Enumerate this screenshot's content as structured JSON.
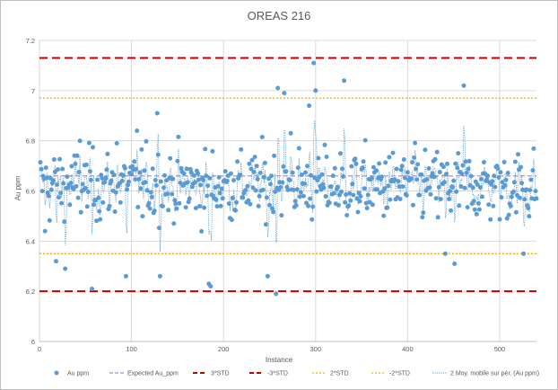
{
  "chart_data": {
    "type": "scatter",
    "title": "OREAS 216",
    "xlabel": "Instance",
    "ylabel": "Au ppm",
    "xlim": [
      0,
      540
    ],
    "ylim": [
      6.0,
      7.2
    ],
    "x_ticks": [
      "0",
      "100",
      "200",
      "300",
      "400",
      "500"
    ],
    "y_ticks": [
      "6",
      "6.2",
      "6.4",
      "6.6",
      "6.8",
      "7",
      "7.2"
    ],
    "colors": {
      "points": "#5b9bd5",
      "expected": "#a98cd9",
      "std3": "#c00000",
      "std2": "#f0b400",
      "moving_avg": "#5b9bd5"
    },
    "reference_lines": {
      "expected": 6.66,
      "plus_3std": 7.13,
      "minus_3std": 6.2,
      "plus_2std": 6.97,
      "minus_2std": 6.35
    },
    "series_count": 540,
    "noise_sd": 0.1,
    "outliers": [
      {
        "x": 5,
        "y": 6.44
      },
      {
        "x": 17,
        "y": 6.32
      },
      {
        "x": 27,
        "y": 6.29
      },
      {
        "x": 43,
        "y": 6.8
      },
      {
        "x": 56,
        "y": 6.21
      },
      {
        "x": 83,
        "y": 6.79
      },
      {
        "x": 93,
        "y": 6.26
      },
      {
        "x": 105,
        "y": 6.84
      },
      {
        "x": 127,
        "y": 6.91
      },
      {
        "x": 130,
        "y": 6.26
      },
      {
        "x": 183,
        "y": 6.23
      },
      {
        "x": 185,
        "y": 6.22
      },
      {
        "x": 247,
        "y": 6.26
      },
      {
        "x": 256,
        "y": 6.19
      },
      {
        "x": 258,
        "y": 7.01
      },
      {
        "x": 265,
        "y": 6.99
      },
      {
        "x": 272,
        "y": 6.83
      },
      {
        "x": 292,
        "y": 6.94
      },
      {
        "x": 297,
        "y": 7.11
      },
      {
        "x": 299,
        "y": 7.0
      },
      {
        "x": 330,
        "y": 7.04
      },
      {
        "x": 440,
        "y": 6.35
      },
      {
        "x": 450,
        "y": 6.31
      },
      {
        "x": 460,
        "y": 7.02
      },
      {
        "x": 525,
        "y": 6.35
      }
    ],
    "legend": [
      {
        "key": "points",
        "label": "Au ppm"
      },
      {
        "key": "expected",
        "label": "Expected Au_ppm"
      },
      {
        "key": "plus_3std",
        "label": "3*STD"
      },
      {
        "key": "minus_3std",
        "label": "-3*STD"
      },
      {
        "key": "plus_2std",
        "label": "2*STD"
      },
      {
        "key": "minus_2std",
        "label": "-2*STD"
      },
      {
        "key": "moving_avg",
        "label": "2 Moy. mobile sur pér. (Au ppm)"
      }
    ]
  }
}
